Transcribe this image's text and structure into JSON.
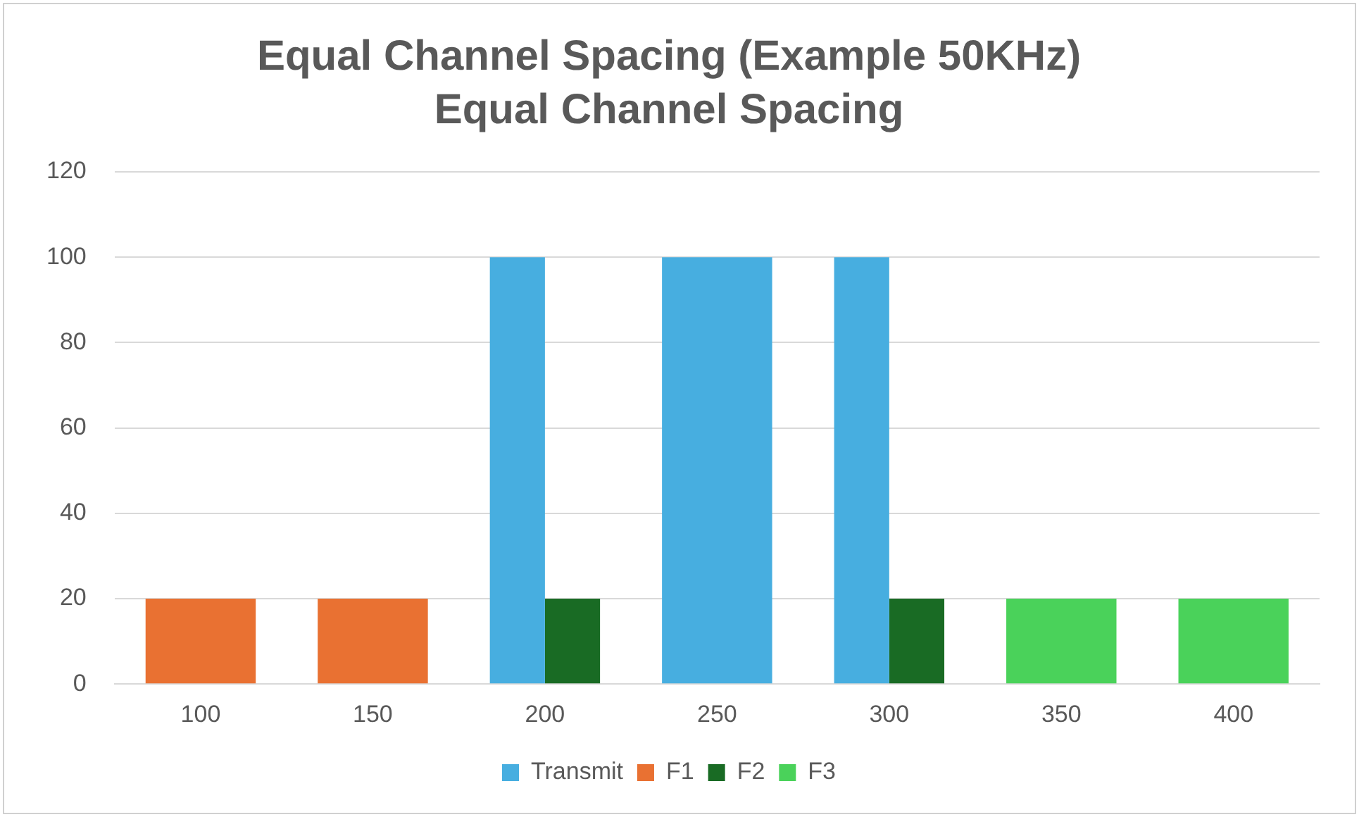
{
  "chart_data": {
    "type": "bar",
    "title": "Equal Channel Spacing (Example 50KHz)",
    "subtitle": "Equal Channel Spacing",
    "categories": [
      "100",
      "150",
      "200",
      "250",
      "300",
      "350",
      "400"
    ],
    "series": [
      {
        "name": "Transmit",
        "color": "#47aee0",
        "values": [
          null,
          null,
          100,
          100,
          100,
          null,
          null
        ]
      },
      {
        "name": "F1",
        "color": "#e97132",
        "values": [
          20,
          20,
          null,
          null,
          null,
          null,
          null
        ]
      },
      {
        "name": "F2",
        "color": "#196b24",
        "values": [
          null,
          null,
          20,
          null,
          20,
          null,
          null
        ]
      },
      {
        "name": "F3",
        "color": "#4ad25a",
        "values": [
          null,
          null,
          null,
          null,
          null,
          20,
          20
        ]
      }
    ],
    "ylim": [
      0,
      120
    ],
    "yticks": [
      0,
      20,
      40,
      60,
      80,
      100,
      120
    ],
    "grid": "y",
    "legend": "bottom"
  }
}
